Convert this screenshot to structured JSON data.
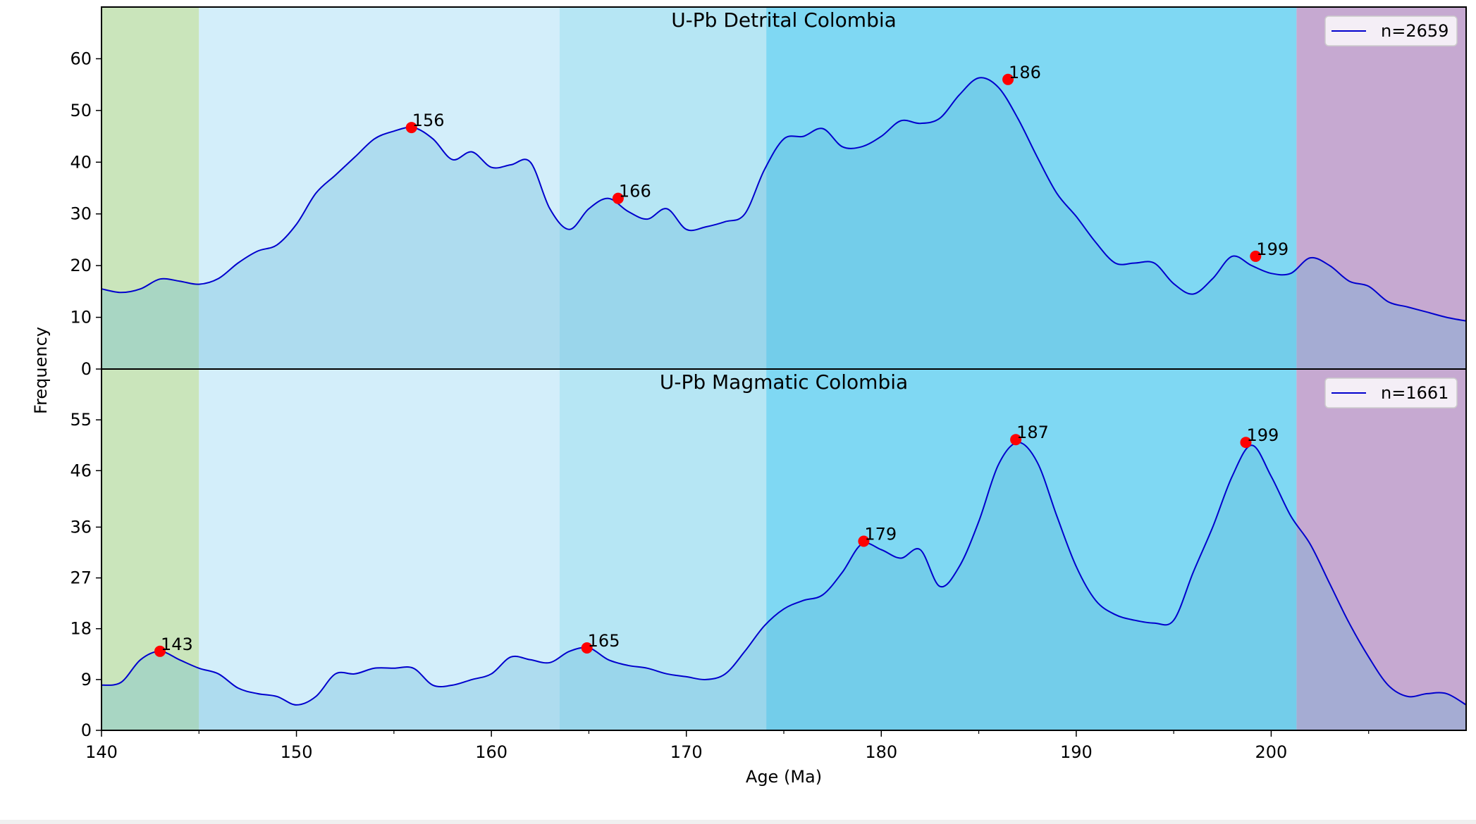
{
  "chart_data": [
    {
      "type": "area",
      "title": "U-Pb Detrital Colombia",
      "xlabel": "Age (Ma)",
      "ylabel": "Frequency",
      "xlim": [
        140,
        210
      ],
      "ylim": [
        0,
        70
      ],
      "yticks": [
        0,
        10,
        20,
        30,
        40,
        50,
        60
      ],
      "ytick_labels": [
        "0",
        "10",
        "20",
        "30",
        "40",
        "50",
        "60"
      ],
      "grid": false,
      "legend": {
        "position": "top-right",
        "entries": [
          {
            "label": "n=2659",
            "color": "#0000cd"
          }
        ]
      },
      "series": [
        {
          "color": "#0000cd",
          "x": [
            140,
            141,
            142,
            143,
            144,
            145,
            146,
            147,
            148,
            149,
            150,
            151,
            152,
            153,
            154,
            155,
            156,
            157,
            158,
            159,
            160,
            161,
            162,
            163,
            164,
            165,
            166,
            167,
            168,
            169,
            170,
            171,
            172,
            173,
            174,
            175,
            176,
            177,
            178,
            179,
            180,
            181,
            182,
            183,
            184,
            185,
            186,
            187,
            188,
            189,
            190,
            191,
            192,
            193,
            194,
            195,
            196,
            197,
            198,
            199,
            200,
            201,
            202,
            203,
            204,
            205,
            206,
            207,
            208,
            209,
            210
          ],
          "y": [
            15.5,
            14.8,
            15.5,
            17.4,
            17,
            16.4,
            17.5,
            20.5,
            22.8,
            24,
            28,
            34,
            37.5,
            41,
            44.5,
            46,
            46.7,
            44.5,
            40.5,
            42,
            39,
            39.5,
            40,
            31,
            27,
            31,
            33,
            30.5,
            29,
            31,
            27,
            27.5,
            28.5,
            30,
            38.5,
            44.5,
            45,
            46.5,
            43,
            43,
            45,
            48,
            47.5,
            48.5,
            53,
            56.3,
            54.5,
            48.5,
            41,
            34,
            29.5,
            24.5,
            20.5,
            20.5,
            20.5,
            16.5,
            14.5,
            17.5,
            21.8,
            20,
            18.5,
            18.5,
            21.5,
            20,
            17,
            16,
            13,
            12,
            11,
            10,
            9.3
          ]
        }
      ],
      "peaks": [
        {
          "x": 155.9,
          "y": 46.7,
          "label": "156"
        },
        {
          "x": 166.5,
          "y": 33,
          "label": "166"
        },
        {
          "x": 186.5,
          "y": 56,
          "label": "186"
        },
        {
          "x": 199.2,
          "y": 21.8,
          "label": "199"
        }
      ]
    },
    {
      "type": "area",
      "title": "U-Pb Magmatic Colombia",
      "xlabel": "Age (Ma)",
      "ylabel": "Frequency",
      "xlim": [
        140,
        210
      ],
      "ylim": [
        0,
        64
      ],
      "yticks": [
        0,
        9,
        18,
        27,
        36,
        46,
        55
      ],
      "ytick_labels": [
        "0",
        "9",
        "18",
        "27",
        "36",
        "46",
        "55"
      ],
      "grid": false,
      "legend": {
        "position": "top-right",
        "entries": [
          {
            "label": "n=1661",
            "color": "#0000cd"
          }
        ]
      },
      "series": [
        {
          "color": "#0000cd",
          "x": [
            140,
            141,
            142,
            143,
            144,
            145,
            146,
            147,
            148,
            149,
            150,
            151,
            152,
            153,
            154,
            155,
            156,
            157,
            158,
            159,
            160,
            161,
            162,
            163,
            164,
            165,
            166,
            167,
            168,
            169,
            170,
            171,
            172,
            173,
            174,
            175,
            176,
            177,
            178,
            179,
            180,
            181,
            182,
            183,
            184,
            185,
            186,
            187,
            188,
            189,
            190,
            191,
            192,
            193,
            194,
            195,
            196,
            197,
            198,
            199,
            200,
            201,
            202,
            203,
            204,
            205,
            206,
            207,
            208,
            209,
            210
          ],
          "y": [
            8,
            8.5,
            12.5,
            14,
            12.5,
            11,
            10,
            7.5,
            6.5,
            6,
            4.5,
            6,
            10,
            10,
            11,
            11,
            11,
            8,
            8,
            9,
            10,
            13,
            12.5,
            12,
            14,
            14.6,
            12.5,
            11.5,
            11,
            10,
            9.5,
            9,
            10,
            14,
            18.5,
            21.5,
            23,
            24,
            28,
            33,
            32,
            30.5,
            32,
            25.5,
            29,
            37,
            47,
            51,
            47.5,
            38,
            29,
            23,
            20.5,
            19.5,
            19,
            19.5,
            28,
            36,
            45,
            50.5,
            45,
            38,
            33,
            26,
            19,
            13,
            8,
            6,
            6.5,
            6.5,
            4.5
          ]
        }
      ],
      "peaks": [
        {
          "x": 143,
          "y": 14,
          "label": "143"
        },
        {
          "x": 164.9,
          "y": 14.6,
          "label": "165"
        },
        {
          "x": 179.1,
          "y": 33.5,
          "label": "179"
        },
        {
          "x": 186.9,
          "y": 51.5,
          "label": "187"
        },
        {
          "x": 198.7,
          "y": 51,
          "label": "199"
        }
      ]
    }
  ],
  "shared_axis": {
    "xticks": [
      140,
      150,
      160,
      170,
      180,
      190,
      200
    ],
    "xtick_labels": [
      "140",
      "150",
      "160",
      "170",
      "180",
      "190",
      "200"
    ],
    "xlabel": "Age (Ma)",
    "ylabel": "Frequency"
  },
  "background_bands": [
    {
      "from": 140,
      "to": 145,
      "color": "#cae5bb"
    },
    {
      "from": 145,
      "to": 163.5,
      "color": "#d3eefa"
    },
    {
      "from": 163.5,
      "to": 174.1,
      "color": "#b6e6f4"
    },
    {
      "from": 174.1,
      "to": 201.3,
      "color": "#7fd8f3"
    },
    {
      "from": 201.3,
      "to": 210,
      "color": "#c6a9d1"
    }
  ],
  "colors": {
    "curve": "#0000cd",
    "peak_marker": "#ff0000",
    "fill": "#58b4d8"
  }
}
